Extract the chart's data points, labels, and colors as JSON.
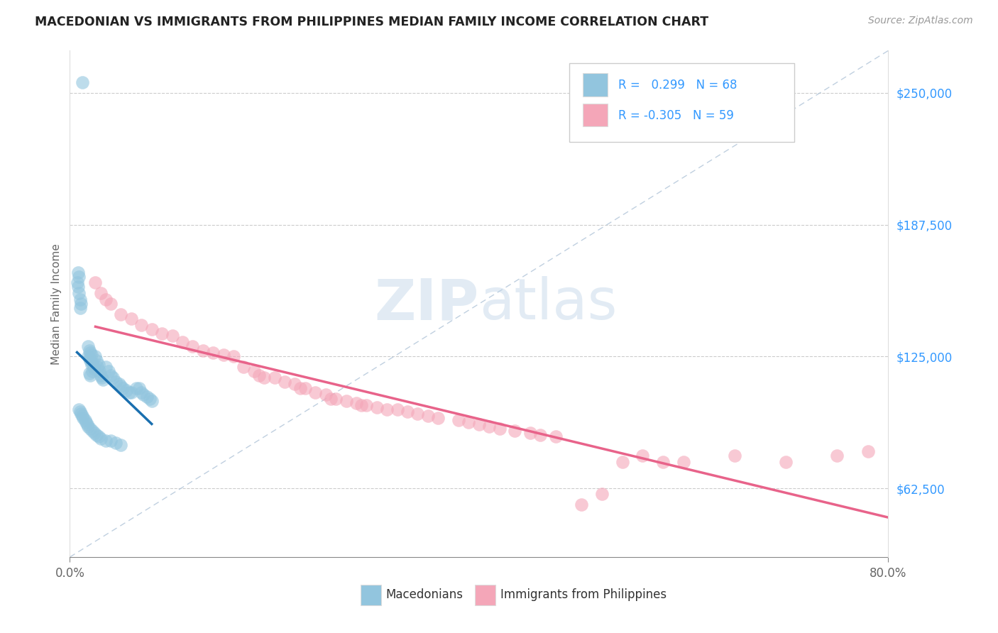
{
  "title": "MACEDONIAN VS IMMIGRANTS FROM PHILIPPINES MEDIAN FAMILY INCOME CORRELATION CHART",
  "source": "Source: ZipAtlas.com",
  "ylabel": "Median Family Income",
  "label1": "Macedonians",
  "label2": "Immigrants from Philippines",
  "blue_color": "#92c5de",
  "pink_color": "#f4a6b8",
  "blue_line_color": "#1a6faf",
  "pink_line_color": "#e8638a",
  "diag_color": "#b0c4d8",
  "legend_R1": " 0.299",
  "legend_N1": "68",
  "legend_R2": "-0.305",
  "legend_N2": "59",
  "xlim": [
    0.0,
    0.8
  ],
  "ylim": [
    30000,
    270000
  ],
  "y_ticks": [
    62500,
    125000,
    187500,
    250000
  ],
  "y_tick_labels": [
    "$62,500",
    "$125,000",
    "$187,500",
    "$250,000"
  ],
  "watermark_text": "ZIPatlas",
  "blue_x": [
    0.012,
    0.008,
    0.009,
    0.007,
    0.008,
    0.009,
    0.01,
    0.011,
    0.01,
    0.018,
    0.019,
    0.02,
    0.021,
    0.018,
    0.019,
    0.02,
    0.022,
    0.021,
    0.023,
    0.024,
    0.022,
    0.019,
    0.02,
    0.025,
    0.026,
    0.028,
    0.027,
    0.029,
    0.03,
    0.031,
    0.032,
    0.035,
    0.038,
    0.04,
    0.042,
    0.045,
    0.048,
    0.05,
    0.052,
    0.055,
    0.058,
    0.06,
    0.065,
    0.068,
    0.07,
    0.072,
    0.075,
    0.078,
    0.08,
    0.009,
    0.01,
    0.011,
    0.012,
    0.013,
    0.015,
    0.016,
    0.017,
    0.018,
    0.02,
    0.022,
    0.024,
    0.026,
    0.028,
    0.03,
    0.035,
    0.04,
    0.045,
    0.05
  ],
  "blue_y": [
    255000,
    165000,
    163000,
    160000,
    158000,
    155000,
    152000,
    150000,
    148000,
    130000,
    128000,
    127000,
    126000,
    125000,
    124000,
    123000,
    122000,
    121000,
    120000,
    119000,
    118000,
    117000,
    116000,
    125000,
    123000,
    121000,
    120000,
    118000,
    116000,
    115000,
    114000,
    120000,
    118000,
    116000,
    115000,
    113000,
    112000,
    111000,
    110000,
    109000,
    108000,
    108000,
    110000,
    110000,
    108000,
    107000,
    106000,
    105000,
    104000,
    100000,
    99000,
    98000,
    97000,
    96000,
    95000,
    94000,
    93000,
    92000,
    91000,
    90000,
    89000,
    88000,
    87000,
    86000,
    85000,
    85000,
    84000,
    83000
  ],
  "pink_x": [
    0.025,
    0.03,
    0.035,
    0.04,
    0.05,
    0.06,
    0.07,
    0.08,
    0.09,
    0.1,
    0.11,
    0.12,
    0.13,
    0.14,
    0.15,
    0.16,
    0.17,
    0.18,
    0.185,
    0.19,
    0.2,
    0.21,
    0.22,
    0.225,
    0.23,
    0.24,
    0.25,
    0.255,
    0.26,
    0.27,
    0.28,
    0.285,
    0.29,
    0.3,
    0.31,
    0.32,
    0.33,
    0.34,
    0.35,
    0.36,
    0.38,
    0.39,
    0.4,
    0.41,
    0.42,
    0.435,
    0.45,
    0.46,
    0.475,
    0.5,
    0.52,
    0.54,
    0.56,
    0.58,
    0.6,
    0.65,
    0.7,
    0.75,
    0.78
  ],
  "pink_y": [
    160000,
    155000,
    152000,
    150000,
    145000,
    143000,
    140000,
    138000,
    136000,
    135000,
    132000,
    130000,
    128000,
    127000,
    126000,
    125000,
    120000,
    118000,
    116000,
    115000,
    115000,
    113000,
    112000,
    110000,
    110000,
    108000,
    107000,
    105000,
    105000,
    104000,
    103000,
    102000,
    102000,
    101000,
    100000,
    100000,
    99000,
    98000,
    97000,
    96000,
    95000,
    94000,
    93000,
    92000,
    91000,
    90000,
    89000,
    88000,
    87000,
    55000,
    60000,
    75000,
    78000,
    75000,
    75000,
    78000,
    75000,
    78000,
    80000
  ]
}
